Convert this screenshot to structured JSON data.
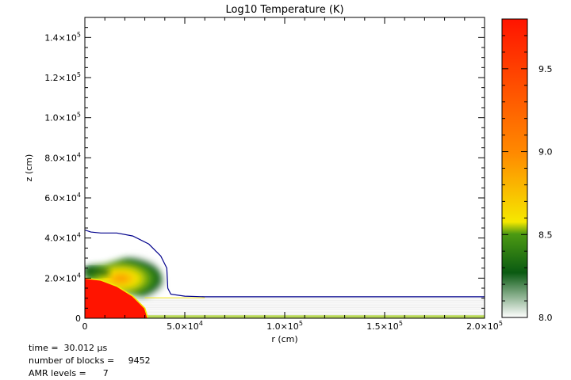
{
  "chart_data": {
    "type": "heatmap",
    "title": "Log10 Temperature (K)",
    "xlabel": "r (cm)",
    "ylabel": "z (cm)",
    "xlim": [
      0,
      200000
    ],
    "ylim": [
      0,
      150000
    ],
    "x_ticks": [
      {
        "value": 0,
        "mant": "0",
        "exp": ""
      },
      {
        "value": 50000,
        "mant": "5.0×10",
        "exp": "4"
      },
      {
        "value": 100000,
        "mant": "1.0×10",
        "exp": "5"
      },
      {
        "value": 150000,
        "mant": "1.5×10",
        "exp": "5"
      },
      {
        "value": 200000,
        "mant": "2.0×10",
        "exp": "5"
      }
    ],
    "y_ticks": [
      {
        "value": 0,
        "mant": "0",
        "exp": ""
      },
      {
        "value": 20000,
        "mant": "2.0×10",
        "exp": "4"
      },
      {
        "value": 40000,
        "mant": "4.0×10",
        "exp": "4"
      },
      {
        "value": 60000,
        "mant": "6.0×10",
        "exp": "4"
      },
      {
        "value": 80000,
        "mant": "8.0×10",
        "exp": "4"
      },
      {
        "value": 100000,
        "mant": "1.0×10",
        "exp": "5"
      },
      {
        "value": 120000,
        "mant": "1.2×10",
        "exp": "5"
      },
      {
        "value": 140000,
        "mant": "1.4×10",
        "exp": "5"
      }
    ],
    "colorbar": {
      "range": [
        8.0,
        9.8
      ],
      "ticks": [
        "8.0",
        "8.5",
        "9.0",
        "9.5"
      ],
      "tick_values": [
        8.0,
        8.5,
        9.0,
        9.5
      ],
      "colors": [
        "#ffffff",
        "#0a5a12",
        "#4c9a12",
        "#f5e800",
        "#ff8a00",
        "#ff1400"
      ]
    },
    "contour_color": "#00008b",
    "contour": [
      [
        0,
        44000
      ],
      [
        3000,
        43000
      ],
      [
        8000,
        42500
      ],
      [
        16000,
        42500
      ],
      [
        24000,
        41000
      ],
      [
        32000,
        37000
      ],
      [
        38000,
        31000
      ],
      [
        41000,
        25000
      ],
      [
        41500,
        15000
      ],
      [
        43000,
        12000
      ],
      [
        50000,
        11000
      ],
      [
        60000,
        10700
      ],
      [
        200000,
        10700
      ]
    ],
    "hot_core_boundary": [
      [
        0,
        20000
      ],
      [
        8000,
        19000
      ],
      [
        16000,
        16000
      ],
      [
        24000,
        11000
      ],
      [
        30000,
        5000
      ],
      [
        31500,
        0
      ]
    ]
  },
  "info": {
    "time": "time =  30.012 μs",
    "blocks": "number of blocks =     9452",
    "amr": "AMR levels =      7"
  }
}
